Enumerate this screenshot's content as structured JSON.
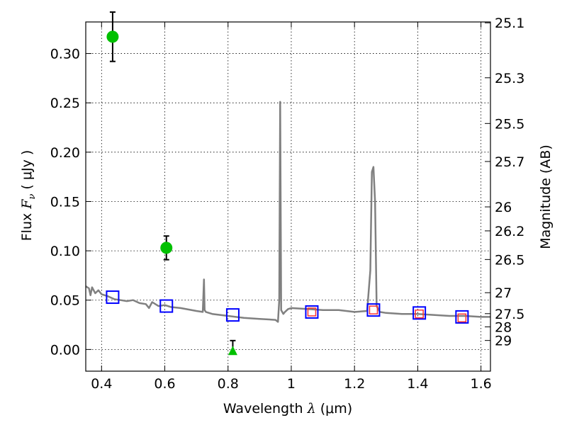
{
  "chart_data": {
    "type": "scatter",
    "xlabel": "Wavelength",
    "xlabel_symbol": "λ",
    "xlabel_unit": "(μm)",
    "ylabel": "Flux",
    "ylabel_symbol": "F",
    "ylabel_subscript": "ν",
    "ylabel_unit": "( μJy )",
    "y2label": "Magnitude (AB)",
    "xlim": [
      0.35,
      1.63
    ],
    "ylim": [
      -0.022,
      0.332
    ],
    "grid": true,
    "grid_style": "dotted",
    "x_ticks": [
      {
        "value": 0.4,
        "label": "0.4"
      },
      {
        "value": 0.6,
        "label": "0.6"
      },
      {
        "value": 0.8,
        "label": "0.8"
      },
      {
        "value": 1.0,
        "label": "1"
      },
      {
        "value": 1.2,
        "label": "1.2"
      },
      {
        "value": 1.4,
        "label": "1.4"
      },
      {
        "value": 1.6,
        "label": "1.6"
      }
    ],
    "y_ticks": [
      {
        "value": 0.0,
        "label": "0.00"
      },
      {
        "value": 0.05,
        "label": "0.05"
      },
      {
        "value": 0.1,
        "label": "0.10"
      },
      {
        "value": 0.15,
        "label": "0.15"
      },
      {
        "value": 0.2,
        "label": "0.20"
      },
      {
        "value": 0.25,
        "label": "0.25"
      },
      {
        "value": 0.3,
        "label": "0.30"
      }
    ],
    "y2_ticks": [
      {
        "mag": 25.1,
        "label": "25.1"
      },
      {
        "mag": 25.3,
        "label": "25.3"
      },
      {
        "mag": 25.5,
        "label": "25.5"
      },
      {
        "mag": 25.7,
        "label": "25.7"
      },
      {
        "mag": 26.0,
        "label": "26"
      },
      {
        "mag": 26.2,
        "label": "26.2"
      },
      {
        "mag": 26.5,
        "label": "26.5"
      },
      {
        "mag": 27.0,
        "label": "27"
      },
      {
        "mag": 27.5,
        "label": "27.5"
      },
      {
        "mag": 28.0,
        "label": "28"
      },
      {
        "mag": 29.0,
        "label": "29"
      }
    ],
    "series": [
      {
        "kind": "line",
        "color": "#808080",
        "x": [
          0.35,
          0.36,
          0.365,
          0.37,
          0.38,
          0.39,
          0.4,
          0.42,
          0.44,
          0.46,
          0.48,
          0.5,
          0.52,
          0.54,
          0.55,
          0.56,
          0.58,
          0.6,
          0.62,
          0.65,
          0.7,
          0.72,
          0.724,
          0.726,
          0.73,
          0.75,
          0.8,
          0.85,
          0.9,
          0.95,
          0.958,
          0.962,
          0.965,
          0.968,
          0.975,
          0.98,
          0.99,
          1.0,
          1.05,
          1.1,
          1.15,
          1.2,
          1.24,
          1.25,
          1.255,
          1.26,
          1.265,
          1.27,
          1.28,
          1.3,
          1.35,
          1.4,
          1.45,
          1.5,
          1.55,
          1.6,
          1.63
        ],
        "y": [
          0.064,
          0.062,
          0.055,
          0.063,
          0.057,
          0.06,
          0.056,
          0.054,
          0.051,
          0.05,
          0.049,
          0.05,
          0.047,
          0.046,
          0.042,
          0.048,
          0.044,
          0.045,
          0.043,
          0.042,
          0.039,
          0.038,
          0.071,
          0.04,
          0.038,
          0.036,
          0.034,
          0.032,
          0.031,
          0.03,
          0.028,
          0.05,
          0.251,
          0.04,
          0.036,
          0.038,
          0.041,
          0.042,
          0.041,
          0.04,
          0.04,
          0.038,
          0.039,
          0.08,
          0.18,
          0.185,
          0.15,
          0.044,
          0.038,
          0.037,
          0.036,
          0.036,
          0.035,
          0.034,
          0.034,
          0.033,
          0.033
        ]
      },
      {
        "kind": "points",
        "marker": "circle",
        "color": "#00c000",
        "x": [
          0.435,
          0.605
        ],
        "y": [
          0.317,
          0.103
        ],
        "yerr": [
          0.025,
          0.012
        ]
      },
      {
        "kind": "points",
        "marker": "triangle",
        "color": "#00c000",
        "x": [
          0.815
        ],
        "y": [
          -0.001
        ],
        "yerr_up": [
          0.01
        ]
      },
      {
        "kind": "points",
        "marker": "square-open",
        "color": "#0000ff",
        "x": [
          0.435,
          0.605,
          0.815,
          1.065,
          1.26,
          1.405,
          1.54
        ],
        "y": [
          0.053,
          0.044,
          0.035,
          0.038,
          0.04,
          0.037,
          0.033
        ]
      },
      {
        "kind": "points",
        "marker": "square-open-small",
        "color": "#ff3333",
        "x": [
          1.065,
          1.26,
          1.405,
          1.54
        ],
        "y": [
          0.038,
          0.04,
          0.036,
          0.032
        ]
      }
    ]
  }
}
